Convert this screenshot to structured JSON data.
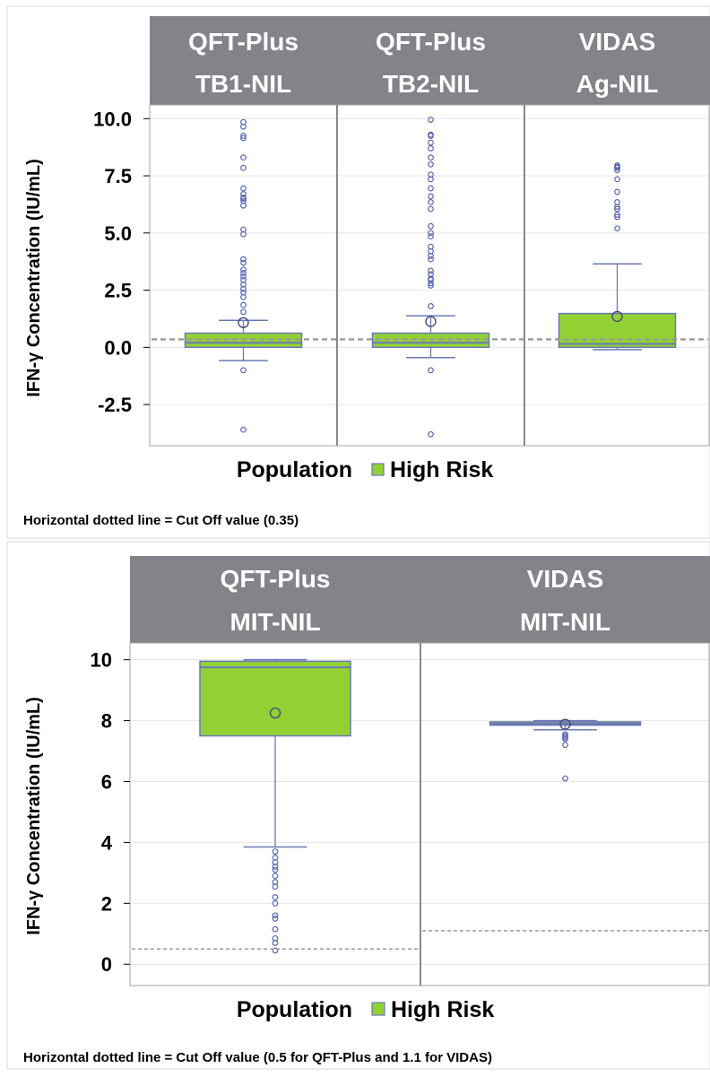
{
  "colors": {
    "header_bg": "#838389",
    "header_text": "#ffffff",
    "box_fill": "#92d133",
    "box_stroke": "#6a78b6",
    "outlier": "#5a66b3",
    "cutoff_line": "#9a9a9a",
    "frame": "#a6a6a6",
    "grid": "#e6e6e6"
  },
  "chart_data": [
    {
      "type": "box",
      "ylabel": "IFN-γ  Concentration (IU/mL)",
      "ylim": [
        -4.3,
        10.6
      ],
      "yticks": [
        10.0,
        7.5,
        5.0,
        2.5,
        0.0,
        -2.5
      ],
      "ytick_labels": [
        "10.0",
        "7.5",
        "5.0",
        "2.5",
        "0.0",
        "-2.5"
      ],
      "legend": {
        "title": "Population",
        "entry": "High Risk",
        "placement": "bottom"
      },
      "note": "Horizontal dotted line = Cut Off value (0.35)",
      "panels": [
        {
          "header": [
            "QFT-Plus",
            "TB1-NIL"
          ],
          "box": {
            "q1": 0.0,
            "median": 0.2,
            "q3": 0.62,
            "whisker_low": -0.58,
            "whisker_high": 1.18,
            "mean": 1.08
          },
          "cutoff": 0.35,
          "outliers": [
            9.85,
            9.65,
            9.25,
            9.15,
            8.3,
            7.85,
            6.95,
            6.7,
            6.55,
            6.5,
            6.4,
            6.2,
            5.15,
            4.95,
            3.85,
            3.7,
            3.4,
            3.25,
            3.1,
            2.95,
            2.75,
            2.55,
            2.4,
            2.2,
            1.85,
            1.55,
            -1.0,
            -3.6
          ]
        },
        {
          "header": [
            "QFT-Plus",
            "TB2-NIL"
          ],
          "box": {
            "q1": 0.0,
            "median": 0.2,
            "q3": 0.62,
            "whisker_low": -0.45,
            "whisker_high": 1.38,
            "mean": 1.13
          },
          "cutoff": 0.35,
          "outliers": [
            9.95,
            9.3,
            9.25,
            8.95,
            8.7,
            8.3,
            8.0,
            7.55,
            7.35,
            6.95,
            6.6,
            6.35,
            6.05,
            5.3,
            5.0,
            4.85,
            4.4,
            4.2,
            4.0,
            3.85,
            3.35,
            3.2,
            3.0,
            2.95,
            2.8,
            2.7,
            1.8,
            -1.0,
            -3.8
          ]
        },
        {
          "header": [
            "VIDAS",
            "Ag-NIL"
          ],
          "box": {
            "q1": 0.0,
            "median": 0.15,
            "q3": 1.48,
            "whisker_low": -0.1,
            "whisker_high": 3.65,
            "mean": 1.35
          },
          "cutoff": 0.35,
          "outliers": [
            7.95,
            7.9,
            7.85,
            7.75,
            7.35,
            6.8,
            6.35,
            6.15,
            6.05,
            5.8,
            5.7,
            5.2
          ]
        }
      ]
    },
    {
      "type": "box",
      "ylabel": "IFN-γ  Concentration (IU/mL)",
      "ylim": [
        -0.7,
        10.55
      ],
      "yticks": [
        10,
        8,
        6,
        4,
        2,
        0
      ],
      "ytick_labels": [
        "10",
        "8",
        "6",
        "4",
        "2",
        "0"
      ],
      "legend": {
        "title": "Population",
        "entry": "High Risk",
        "placement": "bottom"
      },
      "note": "Horizontal dotted line = Cut Off value (0.5 for QFT-Plus and 1.1 for VIDAS)",
      "panels": [
        {
          "header": [
            "QFT-Plus",
            "MIT-NIL"
          ],
          "box": {
            "q1": 7.5,
            "median": 9.75,
            "q3": 9.95,
            "whisker_low": 3.85,
            "whisker_high": 10.0,
            "mean": 8.25
          },
          "cutoff": 0.5,
          "outliers": [
            3.7,
            3.5,
            3.35,
            3.2,
            3.1,
            2.9,
            2.7,
            2.55,
            2.2,
            2.0,
            1.6,
            1.5,
            1.15,
            0.85,
            0.7,
            0.45
          ]
        },
        {
          "header": [
            "VIDAS",
            "MIT-NIL"
          ],
          "box": {
            "q1": 7.85,
            "median": 7.9,
            "q3": 7.96,
            "whisker_low": 7.7,
            "whisker_high": 8.0,
            "mean": 7.88
          },
          "cutoff": 1.1,
          "outliers": [
            7.55,
            7.5,
            7.45,
            7.4,
            7.2,
            6.1
          ]
        }
      ]
    }
  ]
}
